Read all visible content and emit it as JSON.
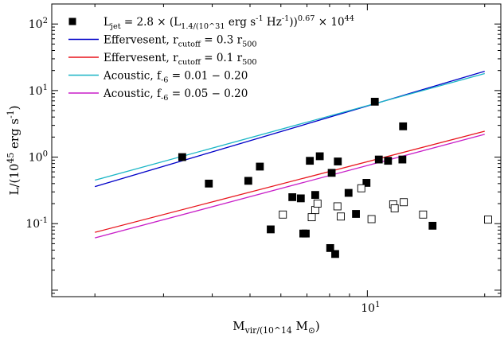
{
  "chart_data": {
    "type": "scatter",
    "xlabel": "M_vir/(10^14 M_⊙)",
    "ylabel": "L/(10^45 erg s^-1)",
    "xscale": "log",
    "yscale": "log",
    "xlim": [
      1.55,
      22
    ],
    "ylim": [
      0.008,
      200
    ],
    "xticks": [
      {
        "value": 10,
        "label": "10^1"
      }
    ],
    "yticks": [
      {
        "value": 0.1,
        "label": "10^-1"
      },
      {
        "value": 1,
        "label": "10^0"
      },
      {
        "value": 10,
        "label": "10^1"
      },
      {
        "value": 100,
        "label": "10^2"
      }
    ],
    "legend_position": "top-left",
    "grid": false,
    "series": [
      {
        "name": "L_jet = 2.8 × (L_1.4/(10^31 erg s^-1 Hz^-1))^0.67 × 10^44",
        "kind": "filled-squares",
        "color": "#000000",
        "points": [
          [
            3.35,
            1.0
          ],
          [
            3.92,
            0.4
          ],
          [
            4.95,
            0.44
          ],
          [
            5.3,
            0.72
          ],
          [
            5.65,
            0.082
          ],
          [
            6.42,
            0.25
          ],
          [
            6.75,
            0.24
          ],
          [
            6.85,
            0.071
          ],
          [
            6.95,
            0.071
          ],
          [
            7.12,
            0.88
          ],
          [
            7.35,
            0.27
          ],
          [
            7.55,
            1.03
          ],
          [
            8.03,
            0.043
          ],
          [
            8.1,
            0.58
          ],
          [
            8.27,
            0.035
          ],
          [
            8.4,
            0.86
          ],
          [
            8.95,
            0.29
          ],
          [
            9.35,
            0.14
          ],
          [
            9.95,
            0.41
          ],
          [
            10.45,
            6.8
          ],
          [
            10.7,
            0.92
          ],
          [
            11.3,
            0.88
          ],
          [
            12.3,
            0.92
          ],
          [
            12.35,
            2.9
          ],
          [
            14.7,
            0.093
          ]
        ]
      },
      {
        "name": "",
        "kind": "open-squares",
        "color": "#000000",
        "points": [
          [
            6.07,
            0.137
          ],
          [
            7.35,
            0.16
          ],
          [
            7.45,
            0.2
          ],
          [
            7.2,
            0.125
          ],
          [
            8.38,
            0.182
          ],
          [
            8.55,
            0.128
          ],
          [
            9.65,
            0.34
          ],
          [
            10.25,
            0.117
          ],
          [
            11.65,
            0.195
          ],
          [
            11.75,
            0.17
          ],
          [
            12.4,
            0.21
          ],
          [
            13.9,
            0.137
          ],
          [
            20.4,
            0.115
          ]
        ]
      },
      {
        "name": "Effervesent, r_cutoff = 0.3 r_500",
        "kind": "line",
        "color": "#0000c8",
        "x": [
          2.0,
          20.0
        ],
        "y": [
          0.36,
          19.5
        ]
      },
      {
        "name": "Effervesent, r_cutoff = 0.1 r_500",
        "kind": "line",
        "color": "#e8141c",
        "x": [
          2.0,
          20.0
        ],
        "y": [
          0.074,
          2.45
        ]
      },
      {
        "name": "Acoustic, f_-6 = 0.01 − 0.20",
        "kind": "line",
        "color": "#1ab6c6",
        "x": [
          2.0,
          20.0
        ],
        "y": [
          0.45,
          18.0
        ]
      },
      {
        "name": "Acoustic, f_-6 = 0.05 − 0.20",
        "kind": "line",
        "color": "#c81ec8",
        "x": [
          2.0,
          20.0
        ],
        "y": [
          0.061,
          2.2
        ]
      }
    ]
  }
}
